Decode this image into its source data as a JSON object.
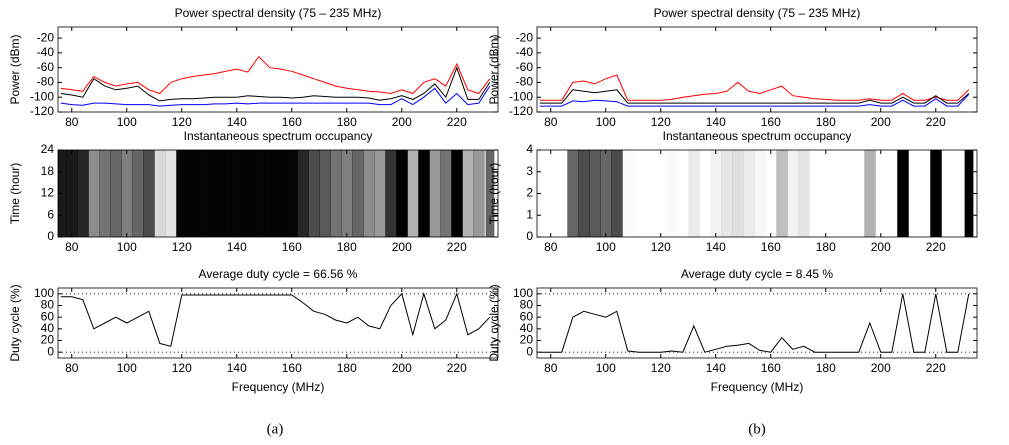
{
  "panel_labels": [
    "(a)",
    "(b)"
  ],
  "chart_data": [
    {
      "type": "line",
      "title": "Power spectral density (75 – 235 MHz)",
      "y_label": "Power (dBm)",
      "x": [
        76,
        80,
        84,
        88,
        92,
        96,
        100,
        104,
        108,
        112,
        116,
        120,
        124,
        128,
        132,
        136,
        140,
        144,
        148,
        152,
        156,
        160,
        164,
        168,
        172,
        176,
        180,
        184,
        188,
        192,
        196,
        200,
        204,
        208,
        212,
        216,
        220,
        224,
        228,
        232
      ],
      "series": [
        {
          "color": "#ff0000",
          "values": [
            -88,
            -90,
            -92,
            -72,
            -80,
            -85,
            -82,
            -80,
            -90,
            -95,
            -80,
            -75,
            -72,
            -70,
            -68,
            -65,
            -62,
            -66,
            -45,
            -60,
            -62,
            -65,
            -70,
            -75,
            -80,
            -85,
            -88,
            -90,
            -92,
            -93,
            -95,
            -90,
            -95,
            -80,
            -75,
            -85,
            -55,
            -90,
            -95,
            -75
          ]
        },
        {
          "color": "#000000",
          "values": [
            -95,
            -97,
            -100,
            -75,
            -85,
            -90,
            -88,
            -85,
            -97,
            -105,
            -103,
            -102,
            -102,
            -101,
            -100,
            -100,
            -100,
            -98,
            -99,
            -100,
            -100,
            -101,
            -100,
            -98,
            -99,
            -100,
            -100,
            -100,
            -101,
            -104,
            -102,
            -98,
            -103,
            -95,
            -82,
            -100,
            -60,
            -103,
            -103,
            -80
          ]
        },
        {
          "color": "#0000ff",
          "values": [
            -108,
            -110,
            -111,
            -108,
            -108,
            -109,
            -110,
            -110,
            -110,
            -112,
            -111,
            -110,
            -110,
            -110,
            -109,
            -109,
            -108,
            -109,
            -108,
            -108,
            -108,
            -108,
            -108,
            -108,
            -108,
            -108,
            -108,
            -108,
            -108,
            -110,
            -110,
            -102,
            -110,
            -100,
            -88,
            -108,
            -95,
            -110,
            -108,
            -85
          ]
        }
      ],
      "xlim": [
        75,
        235
      ],
      "ylim": [
        -120,
        -5
      ],
      "xticks": [
        80,
        100,
        120,
        140,
        160,
        180,
        200,
        220
      ],
      "yticks": [
        -120,
        -100,
        -80,
        -60,
        -40,
        -20
      ]
    },
    {
      "type": "heatmap",
      "title": "Instantaneous spectrum occupancy",
      "y_label": "Time (hour)",
      "color": "#000000",
      "x": [
        76,
        80,
        84,
        88,
        92,
        96,
        100,
        104,
        108,
        112,
        116,
        120,
        124,
        128,
        132,
        136,
        140,
        144,
        148,
        152,
        156,
        160,
        164,
        168,
        172,
        176,
        180,
        184,
        188,
        192,
        196,
        200,
        204,
        208,
        212,
        216,
        220,
        224,
        228,
        232
      ],
      "values": [
        90,
        90,
        85,
        45,
        55,
        60,
        50,
        60,
        70,
        15,
        10,
        98,
        98,
        98,
        98,
        98,
        98,
        98,
        98,
        98,
        98,
        98,
        85,
        70,
        65,
        55,
        50,
        60,
        45,
        40,
        80,
        100,
        30,
        100,
        40,
        55,
        100,
        30,
        40,
        60
      ],
      "xlim": [
        75,
        235
      ],
      "ylim": [
        0,
        24
      ],
      "xticks": [
        80,
        100,
        120,
        140,
        160,
        180,
        200,
        220
      ],
      "yticks": [
        0,
        6,
        12,
        18,
        24
      ]
    },
    {
      "type": "line",
      "title": "Average duty cycle = 66.56 %",
      "y_label": "Duty cycle (%)",
      "x_label": "Frequency (MHz)",
      "hlines": [
        0,
        100
      ],
      "x": [
        76,
        80,
        84,
        88,
        92,
        96,
        100,
        104,
        108,
        112,
        116,
        120,
        124,
        128,
        132,
        136,
        140,
        144,
        148,
        152,
        156,
        160,
        164,
        168,
        172,
        176,
        180,
        184,
        188,
        192,
        196,
        200,
        204,
        208,
        212,
        216,
        220,
        224,
        228,
        232
      ],
      "series": [
        {
          "color": "#000000",
          "values": [
            95,
            95,
            90,
            40,
            50,
            60,
            50,
            60,
            70,
            15,
            10,
            98,
            98,
            98,
            98,
            98,
            98,
            98,
            98,
            98,
            98,
            98,
            85,
            70,
            65,
            55,
            50,
            60,
            45,
            40,
            80,
            100,
            30,
            100,
            40,
            55,
            100,
            30,
            40,
            60
          ]
        }
      ],
      "xlim": [
        75,
        235
      ],
      "ylim": [
        -10,
        110
      ],
      "xticks": [
        80,
        100,
        120,
        140,
        160,
        180,
        200,
        220
      ],
      "yticks": [
        0,
        20,
        40,
        60,
        80,
        100
      ]
    },
    {
      "type": "line",
      "title": "Power spectral density (75 – 235 MHz)",
      "y_label": "Power (dBm)",
      "x": [
        76,
        80,
        84,
        88,
        92,
        96,
        100,
        104,
        108,
        112,
        116,
        120,
        124,
        128,
        132,
        136,
        140,
        144,
        148,
        152,
        156,
        160,
        164,
        168,
        172,
        176,
        180,
        184,
        188,
        192,
        196,
        200,
        204,
        208,
        212,
        216,
        220,
        224,
        228,
        232
      ],
      "series": [
        {
          "color": "#ff0000",
          "values": [
            -104,
            -104,
            -104,
            -80,
            -78,
            -82,
            -75,
            -70,
            -104,
            -104,
            -104,
            -104,
            -103,
            -100,
            -98,
            -96,
            -95,
            -92,
            -80,
            -92,
            -95,
            -90,
            -85,
            -98,
            -100,
            -102,
            -103,
            -104,
            -104,
            -104,
            -102,
            -104,
            -104,
            -95,
            -104,
            -104,
            -100,
            -104,
            -104,
            -90
          ]
        },
        {
          "color": "#000000",
          "values": [
            -108,
            -108,
            -108,
            -90,
            -92,
            -94,
            -92,
            -90,
            -108,
            -108,
            -108,
            -108,
            -108,
            -108,
            -108,
            -108,
            -108,
            -108,
            -108,
            -108,
            -108,
            -108,
            -108,
            -108,
            -108,
            -108,
            -108,
            -108,
            -108,
            -108,
            -104,
            -108,
            -108,
            -100,
            -108,
            -108,
            -98,
            -108,
            -108,
            -95
          ]
        },
        {
          "color": "#0000ff",
          "values": [
            -112,
            -112,
            -112,
            -105,
            -106,
            -104,
            -105,
            -106,
            -112,
            -112,
            -112,
            -112,
            -112,
            -112,
            -112,
            -112,
            -112,
            -112,
            -112,
            -112,
            -112,
            -112,
            -112,
            -112,
            -112,
            -112,
            -112,
            -112,
            -112,
            -112,
            -110,
            -112,
            -112,
            -104,
            -112,
            -112,
            -102,
            -112,
            -112,
            -96
          ]
        }
      ],
      "xlim": [
        75,
        235
      ],
      "ylim": [
        -120,
        -5
      ],
      "xticks": [
        80,
        100,
        120,
        140,
        160,
        180,
        200,
        220
      ],
      "yticks": [
        -120,
        -100,
        -80,
        -60,
        -40,
        -20
      ]
    },
    {
      "type": "heatmap",
      "title": "Instantaneous spectrum occupancy",
      "y_label": "Time (hour)",
      "color": "#000000",
      "x": [
        76,
        80,
        84,
        88,
        92,
        96,
        100,
        104,
        108,
        112,
        116,
        120,
        124,
        128,
        132,
        136,
        140,
        144,
        148,
        152,
        156,
        160,
        164,
        168,
        172,
        176,
        180,
        184,
        188,
        192,
        196,
        200,
        204,
        208,
        212,
        216,
        220,
        224,
        228,
        232
      ],
      "values": [
        0,
        0,
        0,
        60,
        70,
        65,
        60,
        70,
        2,
        0,
        0,
        0,
        2,
        0,
        8,
        0,
        5,
        10,
        12,
        8,
        3,
        0,
        25,
        5,
        10,
        0,
        0,
        0,
        0,
        0,
        30,
        0,
        0,
        100,
        0,
        0,
        100,
        0,
        0,
        100
      ],
      "xlim": [
        75,
        235
      ],
      "ylim": [
        0,
        4
      ],
      "xticks": [
        80,
        100,
        120,
        140,
        160,
        180,
        200,
        220
      ],
      "yticks": [
        0,
        1,
        2,
        3,
        4
      ]
    },
    {
      "type": "line",
      "title": "Average duty cycle = 8.45 %",
      "y_label": "Duty cycle (%)",
      "x_label": "Frequency (MHz)",
      "hlines": [
        0,
        100
      ],
      "x": [
        76,
        80,
        84,
        88,
        92,
        96,
        100,
        104,
        108,
        112,
        116,
        120,
        124,
        128,
        132,
        136,
        140,
        144,
        148,
        152,
        156,
        160,
        164,
        168,
        172,
        176,
        180,
        184,
        188,
        192,
        196,
        200,
        204,
        208,
        212,
        216,
        220,
        224,
        228,
        232
      ],
      "series": [
        {
          "color": "#000000",
          "values": [
            0,
            0,
            0,
            60,
            70,
            65,
            60,
            70,
            2,
            0,
            0,
            0,
            2,
            0,
            45,
            0,
            5,
            10,
            12,
            15,
            3,
            0,
            25,
            5,
            10,
            0,
            0,
            0,
            0,
            0,
            50,
            0,
            0,
            100,
            0,
            0,
            100,
            0,
            0,
            100
          ]
        }
      ],
      "xlim": [
        75,
        235
      ],
      "ylim": [
        -10,
        110
      ],
      "xticks": [
        80,
        100,
        120,
        140,
        160,
        180,
        200,
        220
      ],
      "yticks": [
        0,
        20,
        40,
        60,
        80,
        100
      ]
    }
  ]
}
